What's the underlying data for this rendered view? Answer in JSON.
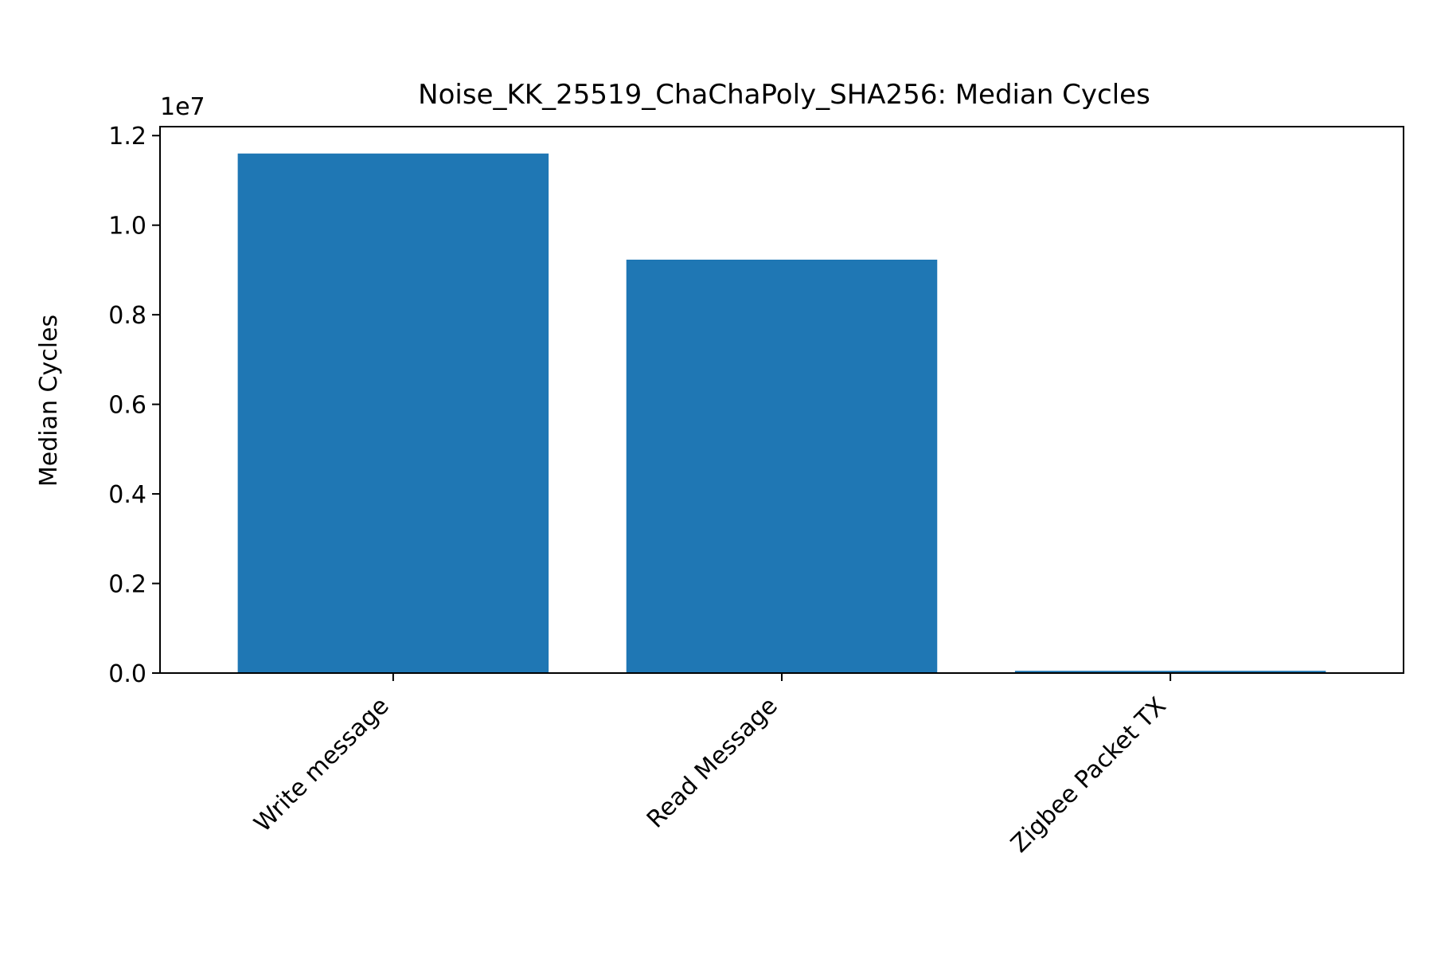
{
  "chart_data": {
    "type": "bar",
    "title": "Noise_KK_25519_ChaChaPoly_SHA256: Median Cycles",
    "xlabel": "",
    "ylabel": "Median Cycles",
    "scale_label": "1e7",
    "scale_factor": 10000000,
    "categories": [
      "Write message",
      "Read Message",
      "Zigbee Packet TX"
    ],
    "values": [
      11600000,
      9230000,
      50000
    ],
    "ylim": [
      0,
      12200000
    ],
    "yticks": [
      0,
      2000000,
      4000000,
      6000000,
      8000000,
      10000000,
      12000000
    ],
    "ytick_labels": [
      "0.0",
      "0.2",
      "0.4",
      "0.6",
      "0.8",
      "1.0",
      "1.2"
    ],
    "bar_color": "#1f77b4",
    "grid": false,
    "legend": "none"
  }
}
